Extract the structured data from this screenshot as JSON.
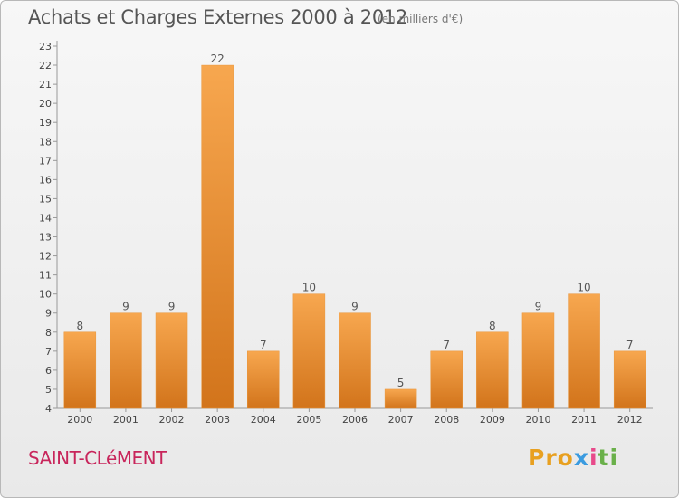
{
  "header": {
    "title": "Achats et Charges Externes 2000 à 2012",
    "subtitle": "(en milliers d'€)"
  },
  "footer": {
    "commune": "SAINT-CLéMENT",
    "brand": [
      "Pro",
      "x",
      "i",
      "ti"
    ]
  },
  "colors": {
    "bar_light": "#f7a74f",
    "bar_dark": "#d2741b",
    "commune": "#c8255b",
    "title": "#555555"
  },
  "chart_data": {
    "type": "bar",
    "categories": [
      "2000",
      "2001",
      "2002",
      "2003",
      "2004",
      "2005",
      "2006",
      "2007",
      "2008",
      "2009",
      "2010",
      "2011",
      "2012"
    ],
    "values": [
      8,
      9,
      9,
      22,
      7,
      10,
      9,
      5,
      7,
      8,
      9,
      10,
      7
    ],
    "ylim": [
      4,
      23
    ],
    "yticks": [
      4,
      5,
      6,
      7,
      8,
      9,
      10,
      11,
      12,
      13,
      14,
      15,
      16,
      17,
      18,
      19,
      20,
      21,
      22,
      23
    ],
    "grid": false,
    "data_labels": true
  }
}
